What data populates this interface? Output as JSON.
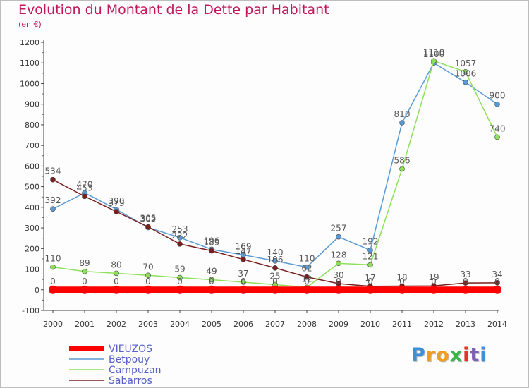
{
  "chart_data": {
    "type": "line",
    "title": "Evolution du Montant de la Dette par Habitant",
    "subtitle": "(en €)",
    "xlabel": "",
    "ylabel": "",
    "x": [
      "2000",
      "2001",
      "2002",
      "2003",
      "2004",
      "2005",
      "2006",
      "2007",
      "2008",
      "2009",
      "2010",
      "2011",
      "2012",
      "2013",
      "2014"
    ],
    "ylim": [
      -100,
      1200
    ],
    "yticks": [
      -100,
      0,
      100,
      200,
      300,
      400,
      500,
      600,
      700,
      800,
      900,
      1000,
      1100,
      1200
    ],
    "grid": false,
    "legend_position": "bottom-left",
    "series": [
      {
        "name": "VIEUZOS",
        "color": "#ff0000",
        "values": [
          0,
          0,
          0,
          0,
          0,
          0,
          0,
          0,
          0,
          0,
          0,
          0,
          0,
          0,
          0
        ],
        "labels": [
          "0",
          "0",
          "0",
          "0",
          "0",
          "0",
          "0",
          "0",
          "0",
          "0",
          "0",
          "0",
          "0",
          "0",
          "0"
        ]
      },
      {
        "name": "Betpouy",
        "color": "#5b9bd5",
        "values": [
          392,
          470,
          390,
          302,
          253,
          196,
          169,
          140,
          110,
          257,
          192,
          810,
          1100,
          1006,
          900
        ],
        "labels": [
          "392",
          "470",
          "390",
          "302",
          "253",
          "196",
          "169",
          "140",
          "110",
          "257",
          "192",
          "810",
          "1100",
          "1006",
          "900"
        ]
      },
      {
        "name": "Campuzan",
        "color": "#8ee05a",
        "values": [
          110,
          89,
          80,
          70,
          59,
          49,
          37,
          25,
          12,
          128,
          121,
          586,
          1110,
          1057,
          740
        ],
        "labels": [
          "110",
          "89",
          "80",
          "70",
          "59",
          "49",
          "37",
          "25",
          "12",
          "128",
          "121",
          "586",
          "1110",
          "1057",
          "740"
        ]
      },
      {
        "name": "Sabarros",
        "color": "#7a1e1e",
        "values": [
          534,
          453,
          379,
          305,
          222,
          189,
          147,
          106,
          62,
          30,
          17,
          18,
          19,
          33,
          34
        ],
        "labels": [
          "534",
          "453",
          "379",
          "305",
          "222",
          "189",
          "147",
          "106",
          "62",
          "30",
          "17",
          "18",
          "19",
          "33",
          "34"
        ]
      }
    ]
  },
  "logo": {
    "letters": [
      "P",
      "r",
      "o",
      "x",
      "i",
      "t",
      "i"
    ],
    "colors": [
      "#3d8fd8",
      "#f29c1f",
      "#f29c1f",
      "#3db34a",
      "#e5332a",
      "#7d5fb8",
      "#3d8fd8"
    ]
  }
}
